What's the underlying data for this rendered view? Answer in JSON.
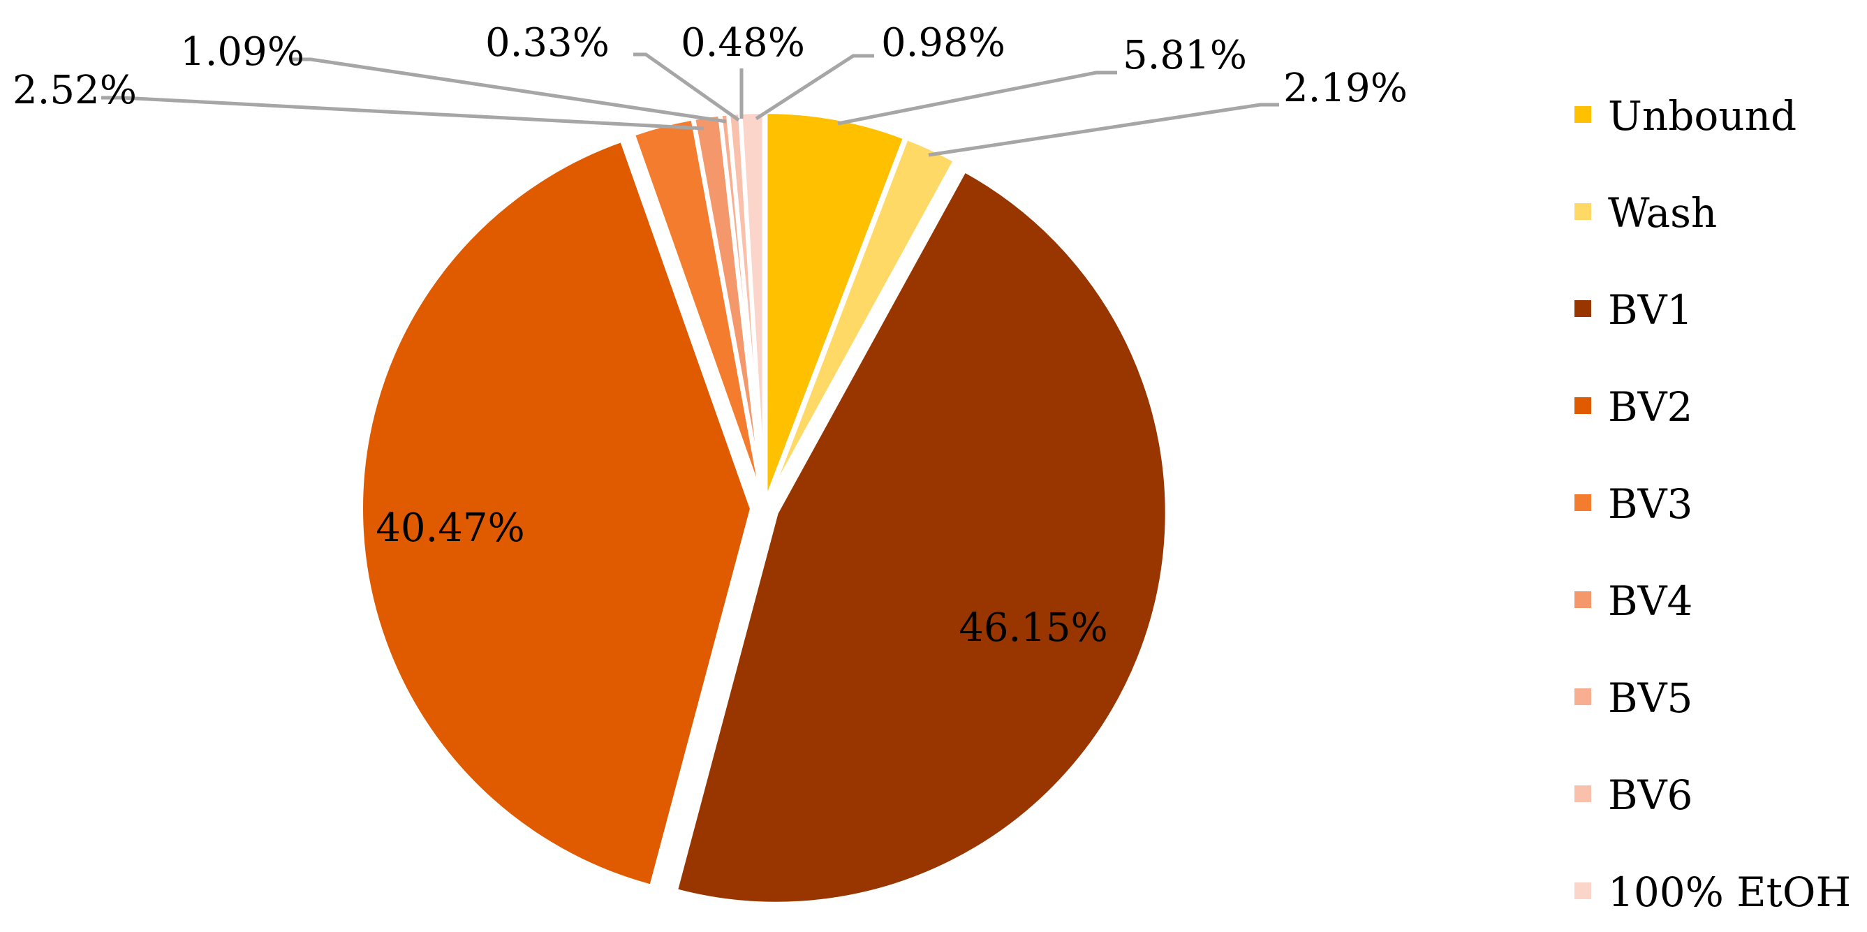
{
  "chart_data": {
    "type": "pie",
    "title": "",
    "slices": [
      {
        "name": "Unbound",
        "value": 5.81,
        "label": "5.81%",
        "color": "#FFC000"
      },
      {
        "name": "Wash",
        "value": 2.19,
        "label": "2.19%",
        "color": "#FFD966"
      },
      {
        "name": "BV1",
        "value": 46.15,
        "label": "46.15%",
        "color": "#993600"
      },
      {
        "name": "BV2",
        "value": 40.47,
        "label": "40.47%",
        "color": "#E05A00"
      },
      {
        "name": "BV3",
        "value": 2.52,
        "label": "2.52%",
        "color": "#F47C2E"
      },
      {
        "name": "BV4",
        "value": 1.09,
        "label": "1.09%",
        "color": "#F4976A"
      },
      {
        "name": "BV5",
        "value": 0.33,
        "label": "0.33%",
        "color": "#F8AE90"
      },
      {
        "name": "BV6",
        "value": 0.48,
        "label": "0.48%",
        "color": "#F9C0AC"
      },
      {
        "name": "100% EtOH",
        "value": 0.98,
        "label": "0.98%",
        "color": "#FBD5CA"
      }
    ],
    "legend_position": "right",
    "leader_line_color": "#A6A6A6"
  }
}
